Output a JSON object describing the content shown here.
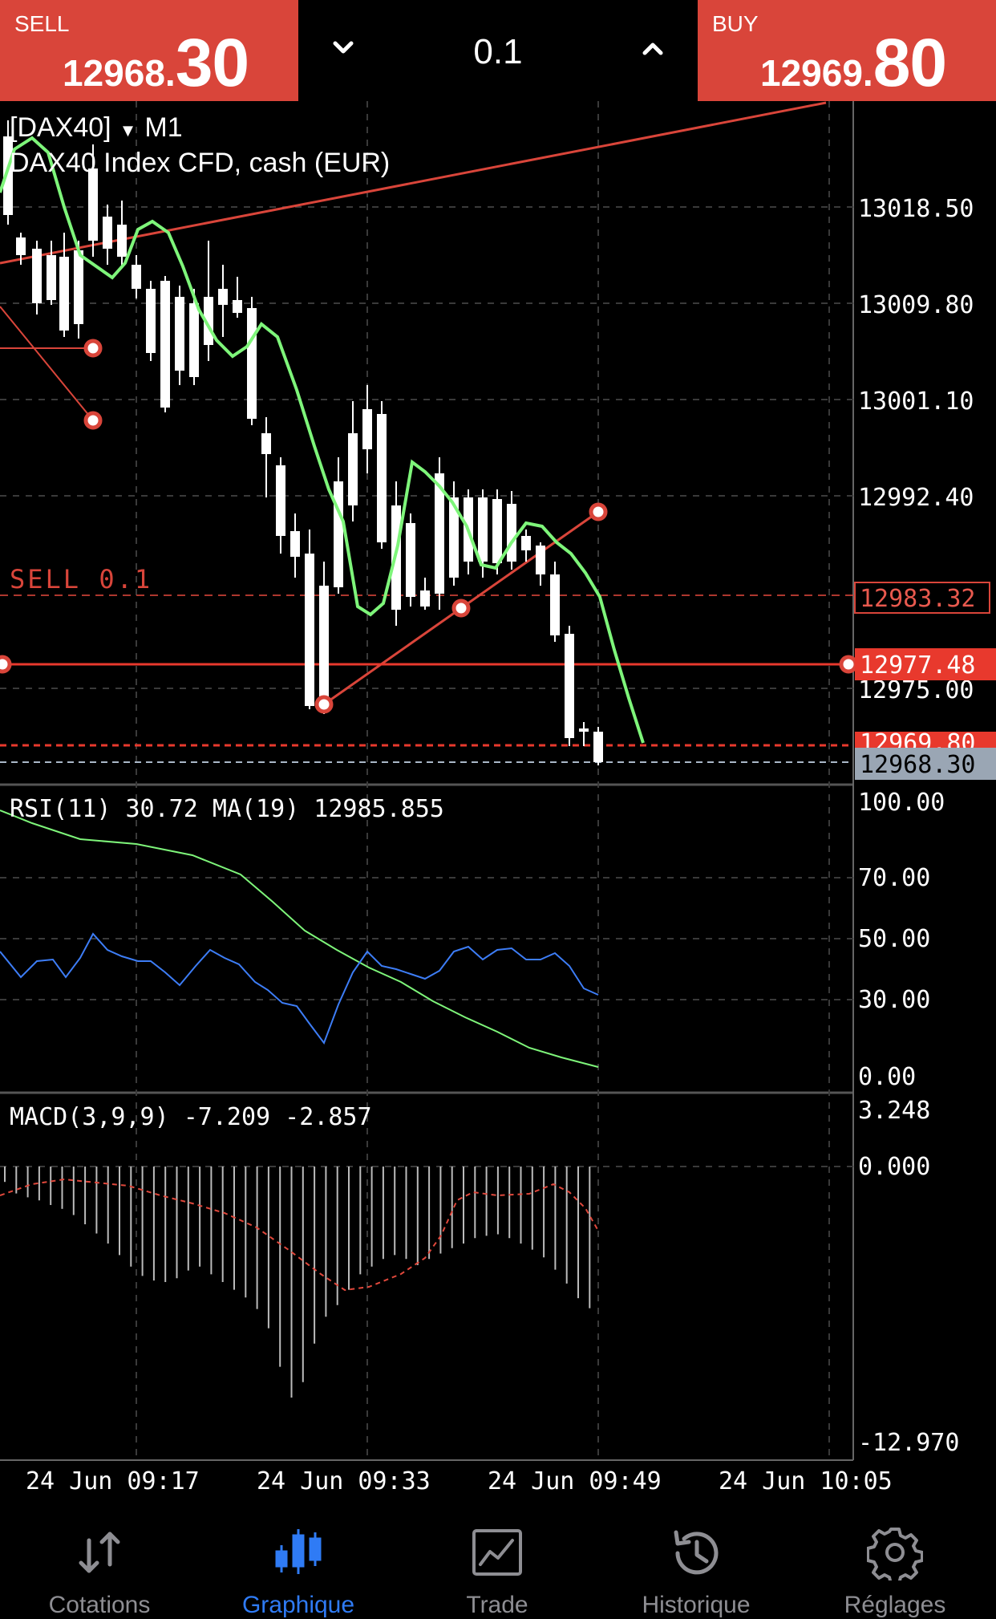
{
  "trade_bar": {
    "sell": {
      "label": "SELL",
      "price_small": "12968.",
      "price_big": "30"
    },
    "buy": {
      "label": "BUY",
      "price_small": "12969.",
      "price_big": "80"
    },
    "volume": "0.1"
  },
  "chart": {
    "symbol": "[DAX40]",
    "symbol_arrow": "▼",
    "timeframe": "M1",
    "description": "DAX40 Index CFD, cash (EUR)",
    "order_line_label": "SELL 0.1",
    "price_axis": [
      "13018.50",
      "13009.80",
      "13001.10",
      "12992.40",
      "12975.00"
    ],
    "price_tags": {
      "order": "12983.32",
      "level": "12977.48",
      "ask": "12969.80",
      "bid": "12968.30"
    },
    "time_axis": [
      "24 Jun 09:17",
      "24 Jun 09:33",
      "24 Jun 09:49",
      "24 Jun 10:05"
    ],
    "colors": {
      "candle": "#ffffff",
      "ma": "#7ef57a",
      "trend": "#d9453a",
      "rsi": "#3d7df6",
      "rsi_ma": "#7ef57a",
      "macd_signal": "#e0483c",
      "grid": "#444444"
    }
  },
  "rsi_panel": {
    "label": "RSI(11) 30.72 MA(19) 12985.855",
    "axis": [
      "100.00",
      "70.00",
      "50.00",
      "30.00",
      "0.00"
    ]
  },
  "macd_panel": {
    "label": "MACD(3,9,9) -7.209 -2.857",
    "axis": [
      "3.248",
      "0.000",
      "-12.970"
    ]
  },
  "nav": {
    "items": [
      {
        "label": "Cotations",
        "icon": "arrows-updown-icon",
        "active": false
      },
      {
        "label": "Graphique",
        "icon": "candlestick-icon",
        "active": true
      },
      {
        "label": "Trade",
        "icon": "trade-chart-icon",
        "active": false
      },
      {
        "label": "Historique",
        "icon": "history-icon",
        "active": false
      },
      {
        "label": "Réglages",
        "icon": "gear-icon",
        "active": false
      }
    ]
  }
}
